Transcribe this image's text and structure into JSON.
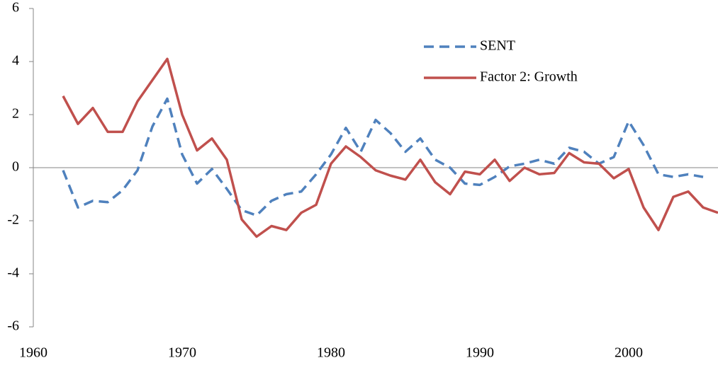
{
  "chart_data": {
    "type": "line",
    "x": [
      1962,
      1963,
      1964,
      1965,
      1966,
      1967,
      1968,
      1969,
      1970,
      1971,
      1972,
      1973,
      1974,
      1975,
      1976,
      1977,
      1978,
      1979,
      1980,
      1981,
      1982,
      1983,
      1984,
      1985,
      1986,
      1987,
      1988,
      1989,
      1990,
      1991,
      1992,
      1993,
      1994,
      1995,
      1996,
      1997,
      1998,
      1999,
      2000,
      2001,
      2002,
      2003,
      2004,
      2005,
      2006
    ],
    "series": [
      {
        "name": "SENT",
        "color": "#4f81bd",
        "dash": true,
        "values": [
          -0.1,
          -1.5,
          -1.25,
          -1.3,
          -0.85,
          -0.1,
          1.55,
          2.6,
          0.5,
          -0.6,
          -0.05,
          -0.8,
          -1.6,
          -1.8,
          -1.25,
          -1.0,
          -0.9,
          -0.25,
          0.5,
          1.5,
          0.6,
          1.8,
          1.3,
          0.6,
          1.1,
          0.3,
          0.0,
          -0.6,
          -0.65,
          -0.35,
          0.05,
          0.15,
          0.3,
          0.15,
          0.75,
          0.6,
          0.15,
          0.4,
          1.75,
          0.85,
          -0.25,
          -0.35,
          -0.25,
          -0.35,
          null
        ]
      },
      {
        "name": "Factor 2: Growth",
        "color": "#c0504d",
        "dash": false,
        "values": [
          2.7,
          1.65,
          2.25,
          1.35,
          1.35,
          2.5,
          3.3,
          4.1,
          2.0,
          0.65,
          1.1,
          0.3,
          -1.95,
          -2.6,
          -2.2,
          -2.35,
          -1.7,
          -1.4,
          0.15,
          0.8,
          0.4,
          -0.1,
          -0.3,
          -0.45,
          0.3,
          -0.55,
          -1.0,
          -0.15,
          -0.25,
          0.3,
          -0.5,
          0.0,
          -0.25,
          -0.2,
          0.55,
          0.2,
          0.15,
          -0.4,
          -0.05,
          -1.5,
          -2.35,
          -1.1,
          -0.9,
          -1.5,
          -1.7
        ]
      }
    ],
    "xlim": [
      1960,
      2006
    ],
    "xticks": [
      1960,
      1970,
      1980,
      1990,
      2000
    ],
    "ylim": [
      -6,
      6
    ],
    "yticks": [
      -6,
      -4,
      -2,
      0,
      2,
      4,
      6
    ]
  }
}
